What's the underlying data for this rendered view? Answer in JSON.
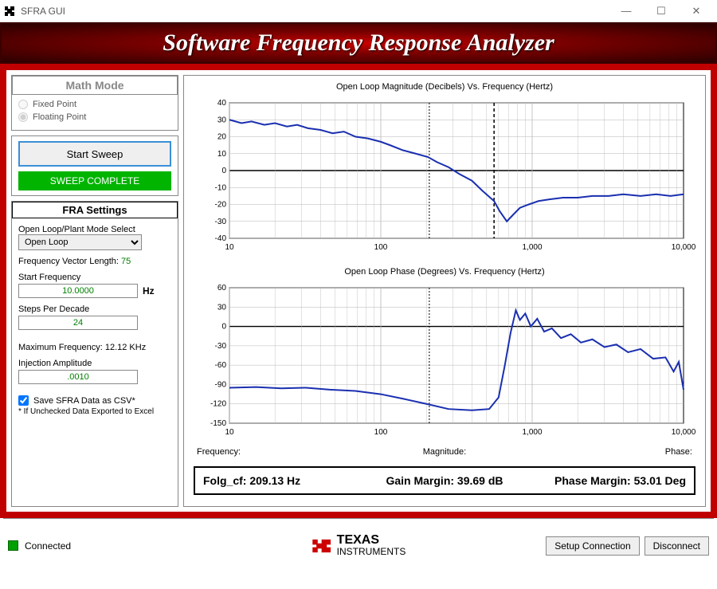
{
  "window": {
    "title": "SFRA GUI"
  },
  "banner": {
    "text": "Software Frequency Response Analyzer"
  },
  "math_mode": {
    "header": "Math Mode",
    "options": [
      "Fixed Point",
      "Floating Point"
    ],
    "selected": "Floating Point",
    "disabled": true
  },
  "sweep": {
    "button_label": "Start Sweep",
    "status_label": "SWEEP COMPLETE",
    "status_color": "#00b400"
  },
  "fra": {
    "header": "FRA Settings",
    "mode_select_label": "Open Loop/Plant Mode Select",
    "mode_select_value": "Open Loop",
    "freq_vector_label": "Frequency Vector Length:",
    "freq_vector_value": "75",
    "start_freq_label": "Start Frequency",
    "start_freq_value": "10.0000",
    "start_freq_unit": "Hz",
    "steps_label": "Steps Per Decade",
    "steps_value": "24",
    "max_freq_label": "Maximum Frequency:",
    "max_freq_value": "12.12 KHz",
    "inj_amp_label": "Injection Amplitude",
    "inj_amp_value": ".0010",
    "csv_checkbox_label": "Save SFRA Data as CSV*",
    "csv_checked": true,
    "csv_footnote": "* If Unchecked Data Exported to Excel"
  },
  "charts": {
    "mag": {
      "title": "Open Loop Magnitude (Decibels) Vs. Frequency (Hertz)",
      "type": "line",
      "xscale": "log",
      "xlim": [
        10,
        10000
      ],
      "xticks": [
        10,
        100,
        1000,
        10000
      ],
      "ylim": [
        -40,
        40
      ],
      "ytick_step": 10,
      "line_color": "#1a2fb0",
      "line_width": 2,
      "grid_color": "#b5b5b5",
      "zero_line_color": "#000000",
      "crossover_marker_x": 209.13,
      "gain_margin_marker_x": 560,
      "data": [
        [
          10,
          30
        ],
        [
          12,
          28
        ],
        [
          14,
          29
        ],
        [
          17,
          27
        ],
        [
          20,
          28
        ],
        [
          24,
          26
        ],
        [
          28,
          27
        ],
        [
          33,
          25
        ],
        [
          40,
          24
        ],
        [
          48,
          22
        ],
        [
          57,
          23
        ],
        [
          68,
          20
        ],
        [
          82,
          19
        ],
        [
          100,
          17
        ],
        [
          115,
          15
        ],
        [
          140,
          12
        ],
        [
          170,
          10
        ],
        [
          205,
          8
        ],
        [
          235,
          5
        ],
        [
          280,
          2
        ],
        [
          330,
          -2
        ],
        [
          400,
          -6
        ],
        [
          470,
          -12
        ],
        [
          560,
          -18
        ],
        [
          610,
          -24
        ],
        [
          680,
          -30
        ],
        [
          750,
          -26
        ],
        [
          830,
          -22
        ],
        [
          950,
          -20
        ],
        [
          1100,
          -18
        ],
        [
          1300,
          -17
        ],
        [
          1600,
          -16
        ],
        [
          2000,
          -16
        ],
        [
          2500,
          -15
        ],
        [
          3200,
          -15
        ],
        [
          4000,
          -14
        ],
        [
          5200,
          -15
        ],
        [
          6600,
          -14
        ],
        [
          8200,
          -15
        ],
        [
          10000,
          -14
        ]
      ]
    },
    "phase": {
      "title": "Open Loop Phase (Degrees) Vs. Frequency (Hertz)",
      "type": "line",
      "xscale": "log",
      "xlim": [
        10,
        10000
      ],
      "xticks": [
        10,
        100,
        1000,
        10000
      ],
      "ylim": [
        -150,
        60
      ],
      "ytick_step": 30,
      "line_color": "#1a2fb0",
      "line_width": 2,
      "grid_color": "#b5b5b5",
      "zero_line_color": "#000000",
      "crossover_marker_x": 209.13,
      "data": [
        [
          10,
          -95
        ],
        [
          15,
          -94
        ],
        [
          22,
          -96
        ],
        [
          32,
          -95
        ],
        [
          46,
          -98
        ],
        [
          68,
          -100
        ],
        [
          100,
          -105
        ],
        [
          140,
          -112
        ],
        [
          200,
          -120
        ],
        [
          280,
          -128
        ],
        [
          400,
          -130
        ],
        [
          520,
          -128
        ],
        [
          600,
          -110
        ],
        [
          660,
          -60
        ],
        [
          720,
          -10
        ],
        [
          780,
          25
        ],
        [
          830,
          10
        ],
        [
          900,
          20
        ],
        [
          980,
          0
        ],
        [
          1080,
          12
        ],
        [
          1200,
          -8
        ],
        [
          1350,
          -3
        ],
        [
          1550,
          -18
        ],
        [
          1800,
          -12
        ],
        [
          2100,
          -25
        ],
        [
          2500,
          -20
        ],
        [
          3000,
          -32
        ],
        [
          3600,
          -28
        ],
        [
          4300,
          -40
        ],
        [
          5200,
          -35
        ],
        [
          6300,
          -50
        ],
        [
          7600,
          -48
        ],
        [
          8600,
          -70
        ],
        [
          9300,
          -55
        ],
        [
          10000,
          -98
        ]
      ]
    },
    "readout_labels": {
      "freq": "Frequency:",
      "mag": "Magnitude:",
      "phase": "Phase:"
    }
  },
  "margins": {
    "folg_label": "Folg_cf:",
    "folg_value": "209.13 Hz",
    "gain_label": "Gain Margin:",
    "gain_value": "39.69 dB",
    "phase_label": "Phase Margin:",
    "phase_value": "53.01 Deg"
  },
  "footer": {
    "connected_label": "Connected",
    "connected_color": "#00a000",
    "logo_text_top": "TEXAS",
    "logo_text_bottom": "INSTRUMENTS",
    "logo_color": "#cc0000",
    "setup_btn": "Setup Connection",
    "disconnect_btn": "Disconnect"
  }
}
